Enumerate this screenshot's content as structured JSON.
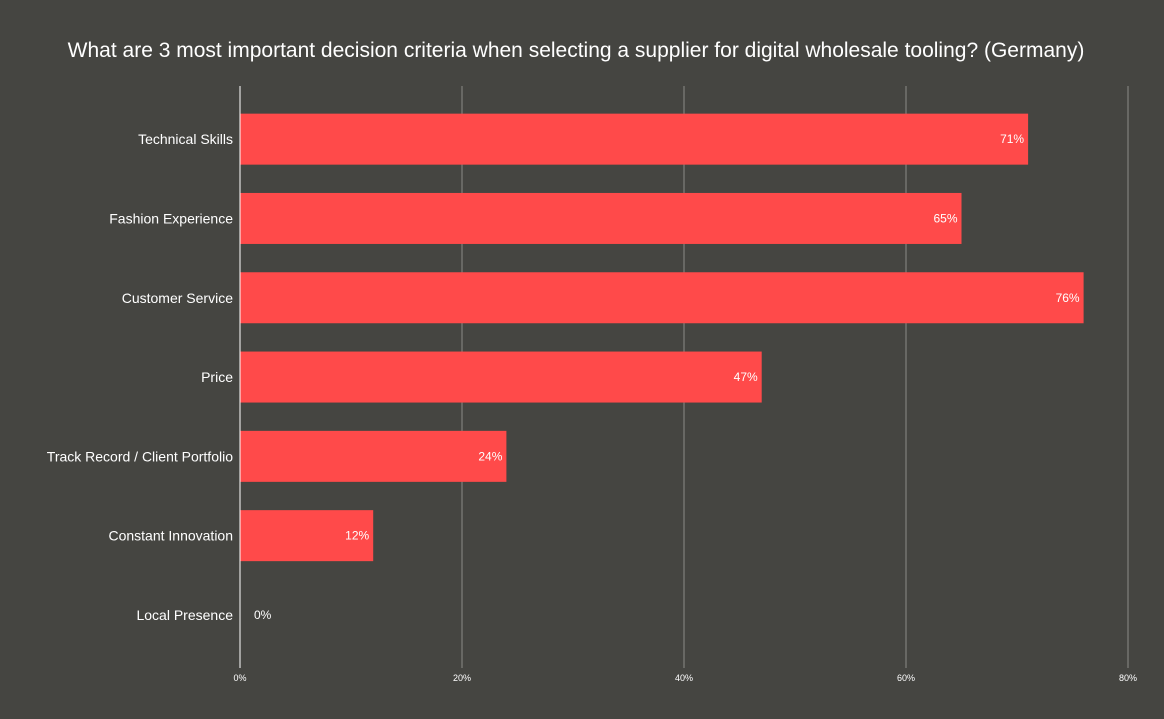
{
  "chart_data": {
    "type": "bar",
    "orientation": "horizontal",
    "title": "What are 3 most important decision criteria when selecting a supplier for digital wholesale tooling? (Germany)",
    "categories": [
      "Technical Skills",
      "Fashion Experience",
      "Customer Service",
      "Price",
      "Track Record / Client Portfolio",
      "Constant Innovation",
      "Local Presence"
    ],
    "values": [
      71,
      65,
      76,
      47,
      24,
      12,
      0
    ],
    "value_labels": [
      "71%",
      "65%",
      "76%",
      "47%",
      "24%",
      "12%",
      "0%"
    ],
    "x_ticks": [
      0,
      20,
      40,
      60,
      80
    ],
    "x_tick_labels": [
      "0%",
      "20%",
      "40%",
      "60%",
      "80%"
    ],
    "xlim": [
      0,
      80
    ],
    "grid": true,
    "legend": "none",
    "colors": {
      "background": "#454541",
      "bar": "#ff4a4a",
      "text": "#ffffff",
      "grid": "#8a8a86"
    }
  }
}
